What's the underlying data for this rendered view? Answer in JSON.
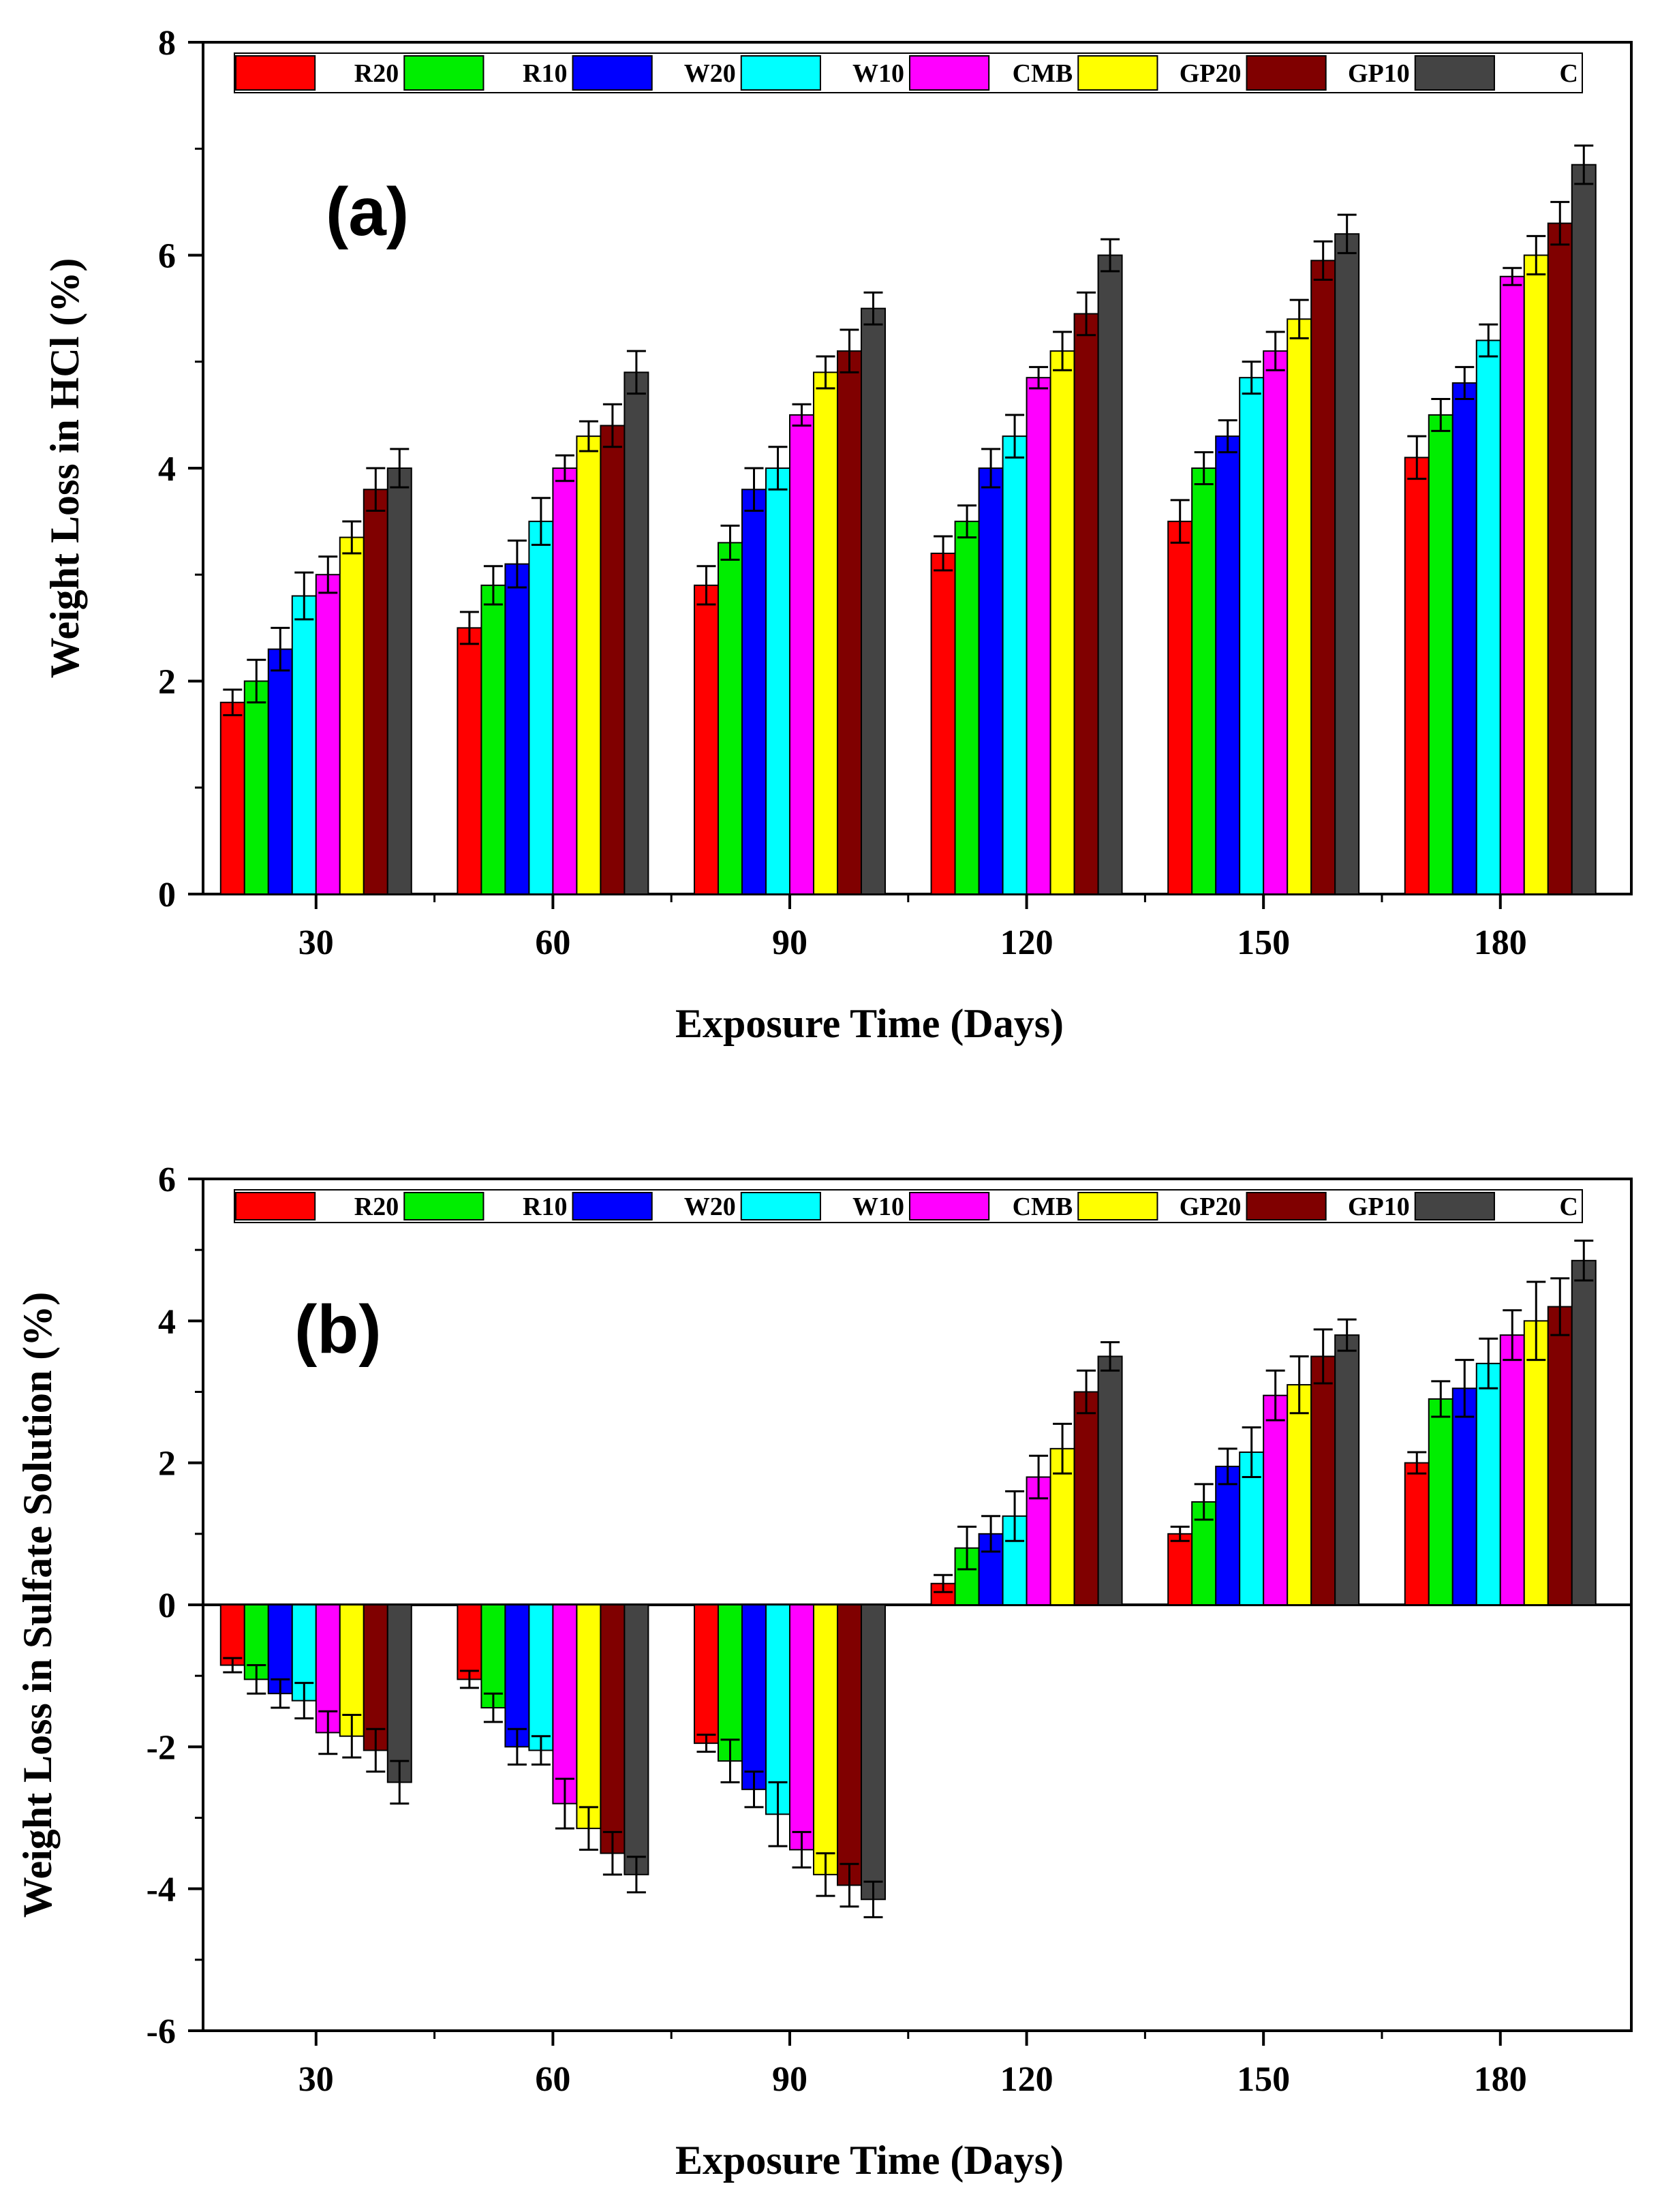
{
  "chart_data": [
    {
      "type": "bar",
      "panel_label": "(a)",
      "xlabel": "Exposure Time (Days)",
      "ylabel": "Weight Loss in HCl (%)",
      "categories": [
        "30",
        "60",
        "90",
        "120",
        "150",
        "180"
      ],
      "ylim": [
        0,
        8
      ],
      "yticks": [
        "0",
        "2",
        "4",
        "6",
        "8"
      ],
      "legend_placement": "top, single row",
      "grid": false,
      "series": [
        {
          "name": "R20",
          "color": "#ff0000",
          "values": [
            1.8,
            2.5,
            2.9,
            3.2,
            3.5,
            4.1
          ],
          "errors": [
            0.12,
            0.15,
            0.18,
            0.16,
            0.2,
            0.2
          ]
        },
        {
          "name": "R10",
          "color": "#00ee00",
          "values": [
            2.0,
            2.9,
            3.3,
            3.5,
            4.0,
            4.5
          ],
          "errors": [
            0.2,
            0.18,
            0.16,
            0.15,
            0.15,
            0.15
          ]
        },
        {
          "name": "W20",
          "color": "#0000ff",
          "values": [
            2.3,
            3.1,
            3.8,
            4.0,
            4.3,
            4.8
          ],
          "errors": [
            0.2,
            0.22,
            0.2,
            0.18,
            0.15,
            0.15
          ]
        },
        {
          "name": "W10",
          "color": "#00ffff",
          "values": [
            2.8,
            3.5,
            4.0,
            4.3,
            4.85,
            5.2
          ],
          "errors": [
            0.22,
            0.22,
            0.2,
            0.2,
            0.15,
            0.15
          ]
        },
        {
          "name": "CMB",
          "color": "#ff00ff",
          "values": [
            3.0,
            4.0,
            4.5,
            4.85,
            5.1,
            5.8
          ],
          "errors": [
            0.17,
            0.12,
            0.1,
            0.1,
            0.18,
            0.08
          ]
        },
        {
          "name": "GP20",
          "color": "#ffff00",
          "values": [
            3.35,
            4.3,
            4.9,
            5.1,
            5.4,
            6.0
          ],
          "errors": [
            0.15,
            0.14,
            0.15,
            0.18,
            0.18,
            0.18
          ]
        },
        {
          "name": "GP10",
          "color": "#800000",
          "values": [
            3.8,
            4.4,
            5.1,
            5.45,
            5.95,
            6.3
          ],
          "errors": [
            0.2,
            0.2,
            0.2,
            0.2,
            0.18,
            0.2
          ]
        },
        {
          "name": "C",
          "color": "#444444",
          "values": [
            4.0,
            4.9,
            5.5,
            6.0,
            6.2,
            6.85
          ],
          "errors": [
            0.18,
            0.2,
            0.15,
            0.15,
            0.18,
            0.18
          ]
        }
      ]
    },
    {
      "type": "bar",
      "panel_label": "(b)",
      "xlabel": "Exposure Time (Days)",
      "ylabel": "Weight Loss in Sulfate Solution (%)",
      "categories": [
        "30",
        "60",
        "90",
        "120",
        "150",
        "180"
      ],
      "ylim": [
        -6,
        6
      ],
      "yticks": [
        "-6",
        "-4",
        "-2",
        "0",
        "2",
        "4",
        "6"
      ],
      "legend_placement": "top, single row",
      "grid": false,
      "series": [
        {
          "name": "R20",
          "color": "#ff0000",
          "values": [
            -0.85,
            -1.05,
            -1.95,
            0.3,
            1.0,
            2.0
          ],
          "errors": [
            0.1,
            0.12,
            0.12,
            0.12,
            0.1,
            0.15
          ]
        },
        {
          "name": "R10",
          "color": "#00ee00",
          "values": [
            -1.05,
            -1.45,
            -2.2,
            0.8,
            1.45,
            2.9
          ],
          "errors": [
            0.2,
            0.2,
            0.3,
            0.3,
            0.25,
            0.25
          ]
        },
        {
          "name": "W20",
          "color": "#0000ff",
          "values": [
            -1.25,
            -2.0,
            -2.6,
            1.0,
            1.95,
            3.05
          ],
          "errors": [
            0.2,
            0.25,
            0.25,
            0.25,
            0.25,
            0.4
          ]
        },
        {
          "name": "W10",
          "color": "#00ffff",
          "values": [
            -1.35,
            -2.05,
            -2.95,
            1.25,
            2.15,
            3.4
          ],
          "errors": [
            0.25,
            0.2,
            0.45,
            0.35,
            0.35,
            0.35
          ]
        },
        {
          "name": "CMB",
          "color": "#ff00ff",
          "values": [
            -1.8,
            -2.8,
            -3.45,
            1.8,
            2.95,
            3.8
          ],
          "errors": [
            0.3,
            0.35,
            0.25,
            0.3,
            0.35,
            0.35
          ]
        },
        {
          "name": "GP20",
          "color": "#ffff00",
          "values": [
            -1.85,
            -3.15,
            -3.8,
            2.2,
            3.1,
            4.0
          ],
          "errors": [
            0.3,
            0.3,
            0.3,
            0.35,
            0.4,
            0.55
          ]
        },
        {
          "name": "GP10",
          "color": "#800000",
          "values": [
            -2.05,
            -3.5,
            -3.95,
            3.0,
            3.5,
            4.2
          ],
          "errors": [
            0.3,
            0.3,
            0.3,
            0.3,
            0.38,
            0.4
          ]
        },
        {
          "name": "C",
          "color": "#444444",
          "values": [
            -2.5,
            -3.8,
            -4.15,
            3.5,
            3.8,
            4.85
          ],
          "errors": [
            0.3,
            0.25,
            0.25,
            0.2,
            0.22,
            0.28
          ]
        }
      ]
    }
  ]
}
